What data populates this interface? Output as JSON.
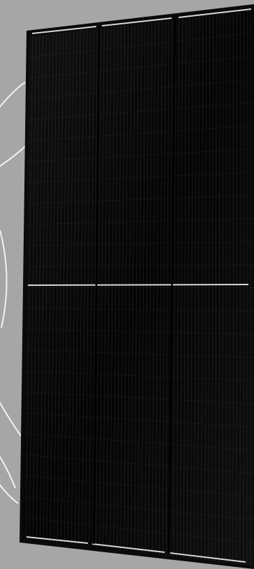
{
  "scene": {
    "background_color": "#a6a6a6",
    "panel_frame_color": "#0a0a0a",
    "cell_color": "#050505",
    "grid_line_color": "#3a3a3a",
    "busbar_color": "#d8d8d8",
    "background_arc_color": "#ffffff"
  }
}
